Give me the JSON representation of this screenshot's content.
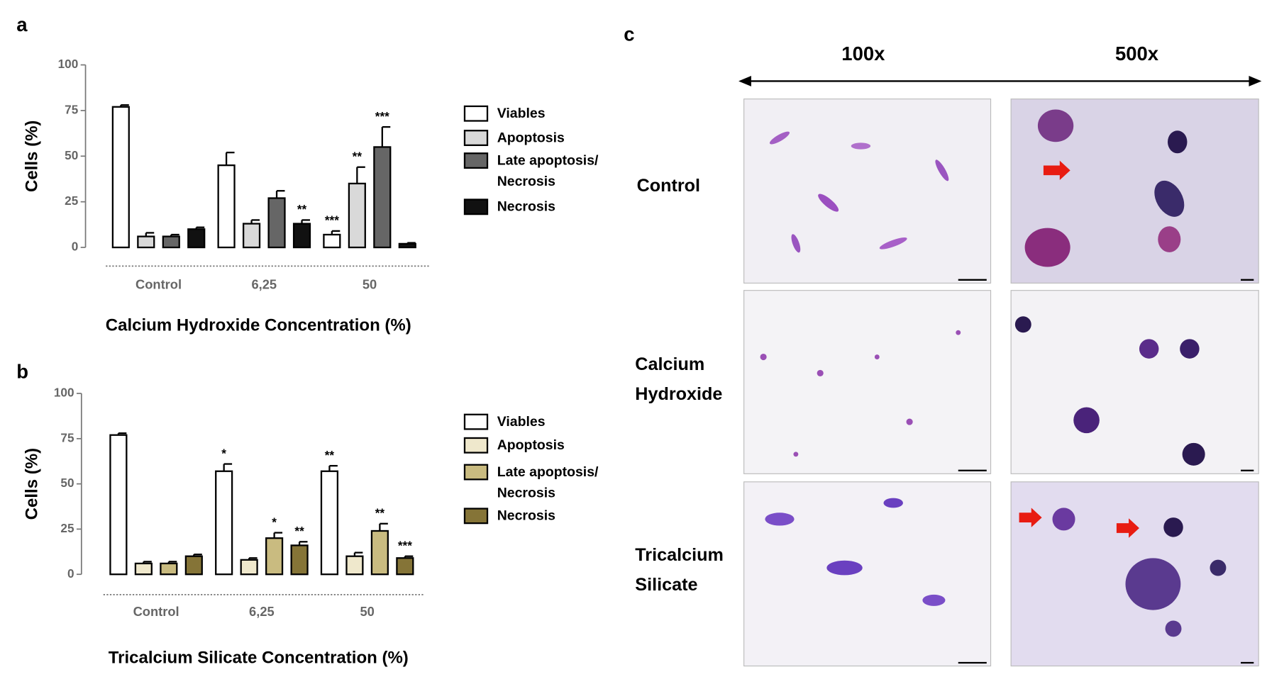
{
  "panel_labels": [
    "a",
    "b",
    "c"
  ],
  "chart_data": [
    {
      "type": "bar",
      "y_label": "Cells (%)",
      "x_label": "Calcium Hydroxide Concentration (%)",
      "categories": [
        "Control",
        "6,25",
        "50"
      ],
      "ylim": [
        0,
        100
      ],
      "yticks": [
        0,
        25,
        50,
        75,
        100
      ],
      "series": [
        {
          "name": "Viables",
          "color": "#ffffff",
          "values": [
            77,
            45,
            7
          ],
          "errors": [
            1,
            7,
            2
          ],
          "annotations": [
            null,
            null,
            "***"
          ]
        },
        {
          "name": "Apoptosis",
          "color": "#d9d9d9",
          "values": [
            6,
            13,
            35
          ],
          "errors": [
            2,
            2,
            9
          ],
          "annotations": [
            null,
            null,
            "**"
          ]
        },
        {
          "name": "Late apoptosis/ Necrosis",
          "color": "#666666",
          "values": [
            6,
            27,
            55
          ],
          "errors": [
            1,
            4,
            11
          ],
          "annotations": [
            null,
            null,
            "***"
          ]
        },
        {
          "name": "Necrosis",
          "color": "#111111",
          "values": [
            10,
            13,
            2
          ],
          "errors": [
            1,
            2,
            0.5
          ],
          "annotations": [
            null,
            "**",
            null
          ]
        }
      ]
    },
    {
      "type": "bar",
      "y_label": "Cells (%)",
      "x_label": "Tricalcium Silicate Concentration (%)",
      "categories": [
        "Control",
        "6,25",
        "50"
      ],
      "ylim": [
        0,
        100
      ],
      "yticks": [
        0,
        25,
        50,
        75,
        100
      ],
      "series": [
        {
          "name": "Viables",
          "color": "#ffffff",
          "values": [
            77,
            57,
            57
          ],
          "errors": [
            1,
            4,
            3
          ],
          "annotations": [
            null,
            "*",
            "**"
          ]
        },
        {
          "name": "Apoptosis",
          "color": "#efe8cc",
          "values": [
            6,
            8,
            10
          ],
          "errors": [
            1,
            1,
            2
          ],
          "annotations": [
            null,
            null,
            null
          ]
        },
        {
          "name": "Late apoptosis/ Necrosis",
          "color": "#c9bb80",
          "values": [
            6,
            20,
            24
          ],
          "errors": [
            1,
            3,
            4
          ],
          "annotations": [
            null,
            "*",
            "**"
          ]
        },
        {
          "name": "Necrosis",
          "color": "#857437",
          "values": [
            10,
            16,
            9
          ],
          "errors": [
            1,
            2,
            1
          ],
          "annotations": [
            null,
            "**",
            "***"
          ]
        }
      ]
    }
  ],
  "micrographs": {
    "columns": [
      "100x",
      "500x"
    ],
    "rows": [
      "Control",
      "Calcium Hydroxide",
      "Tricalcium Silicate"
    ]
  }
}
